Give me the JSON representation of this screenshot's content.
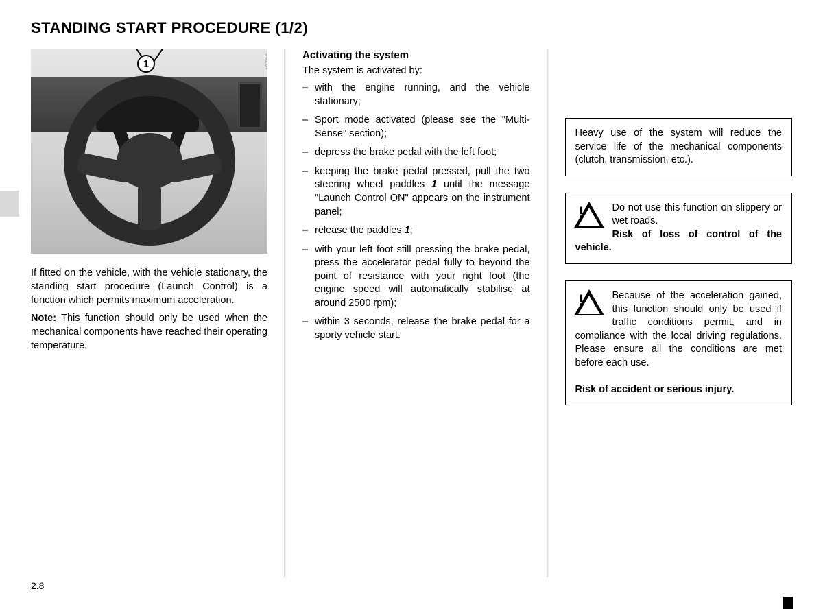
{
  "title": "STANDING START PROCEDURE (1/2)",
  "figure": {
    "code": "40786",
    "callout": "1"
  },
  "col1": {
    "p1": "If fitted on the vehicle, with the vehicle stationary, the standing start procedure (Launch Control) is a function which permits maximum acceleration.",
    "note_label": "Note:",
    "note_text": " This function should only be used when the mechanical components have reached their operating temperature."
  },
  "col2": {
    "heading": "Activating the system",
    "intro": "The system is activated by:",
    "items": [
      "with the engine running, and the vehicle stationary;",
      "Sport mode activated (please see the \"Multi-Sense\" section);",
      "depress the brake pedal with the left foot;",
      "",
      "",
      "with your left foot still pressing the brake pedal, press the accelerator pedal fully to beyond the point of resistance with your right foot (the engine speed will automatically stabilise at around 2500 rpm);",
      "within 3 seconds, release the brake pedal for a sporty vehicle start."
    ],
    "item4_a": "keeping the brake pedal pressed, pull the two steering wheel paddles ",
    "item4_ref": "1",
    "item4_b": " until the message \"Launch Control ON\" appears on the instrument panel;",
    "item5_a": "release the paddles ",
    "item5_ref": "1",
    "item5_b": ";"
  },
  "col3": {
    "box1": "Heavy use of the system will reduce the service life of the mechanical components (clutch, transmission, etc.).",
    "box2_a": "Do not use this function on slippery or wet roads.",
    "box2_b": "Risk of loss of control of the vehicle.",
    "box3_a": "Because of the acceleration gained, this function should only be used if traffic conditions permit, and in compliance with the local driving regulations. Please ensure all the conditions are met before each use.",
    "box3_b": "Risk of accident or serious injury."
  },
  "page_number": "2.8"
}
